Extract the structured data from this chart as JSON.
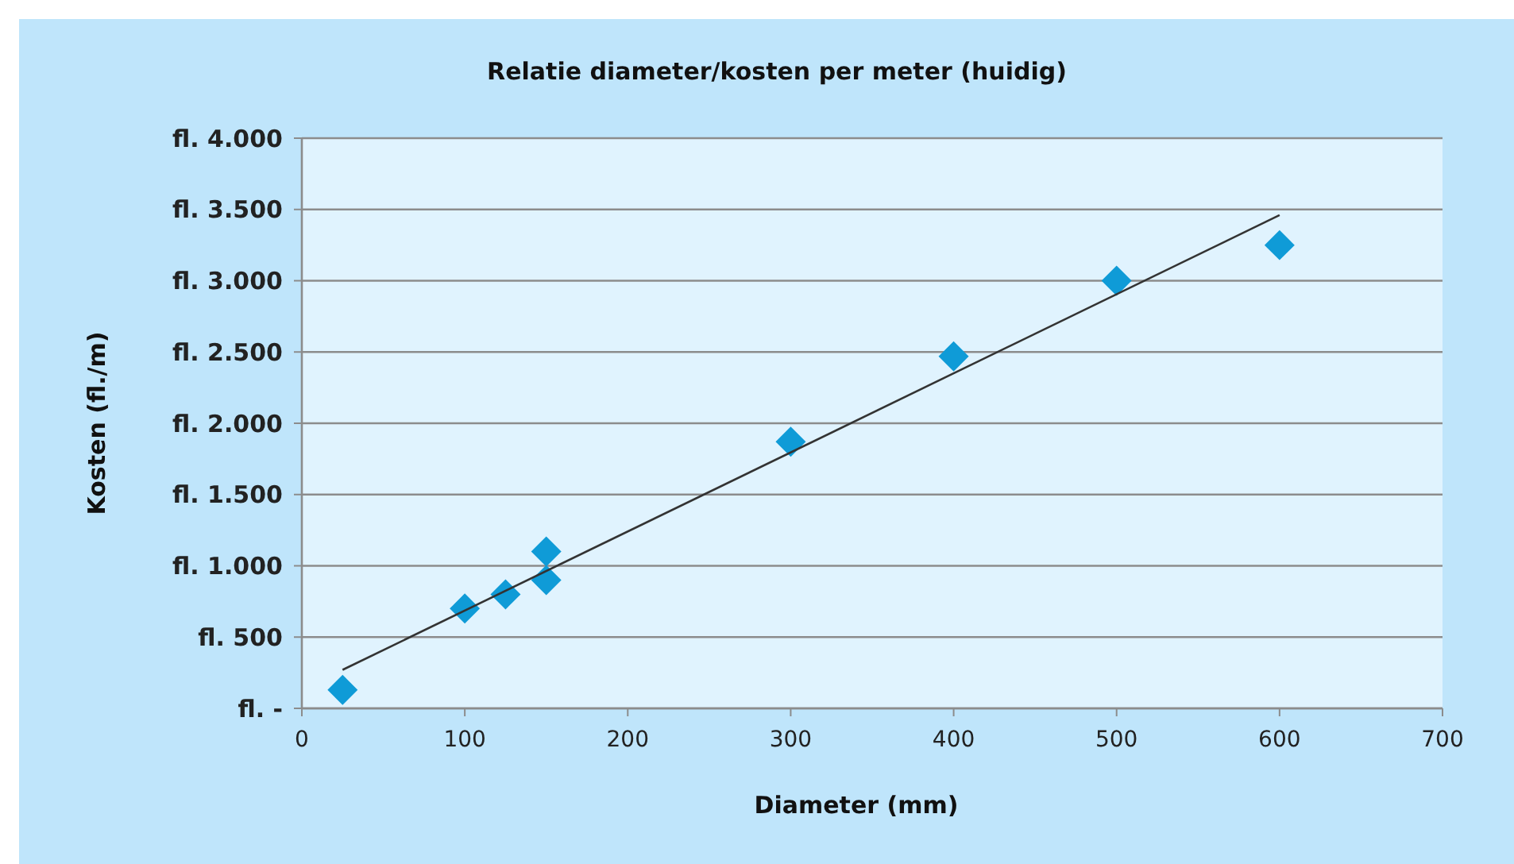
{
  "chart_data": {
    "type": "scatter",
    "title": "Relatie diameter/kosten per meter (huidig)",
    "xlabel": "Diameter (mm)",
    "ylabel": "Kosten (fl./m)",
    "xlim": [
      0,
      700
    ],
    "xticks": [
      0,
      100,
      200,
      300,
      400,
      500,
      600,
      700
    ],
    "ylim": [
      0,
      4000
    ],
    "yticks": [
      {
        "value": 0,
        "label": "fl.    -"
      },
      {
        "value": 500,
        "label": "fl. 500"
      },
      {
        "value": 1000,
        "label": "fl. 1.000"
      },
      {
        "value": 1500,
        "label": "fl. 1.500"
      },
      {
        "value": 2000,
        "label": "fl. 2.000"
      },
      {
        "value": 2500,
        "label": "fl. 2.500"
      },
      {
        "value": 3000,
        "label": "fl. 3.000"
      },
      {
        "value": 3500,
        "label": "fl. 3.500"
      },
      {
        "value": 4000,
        "label": "fl. 4.000"
      }
    ],
    "grid": "y",
    "marker": "diamond",
    "series": [
      {
        "color": "#0f9bd7",
        "x": [
          25,
          100,
          125,
          150,
          150,
          300,
          400,
          500,
          600
        ],
        "values": [
          130,
          700,
          800,
          1100,
          900,
          1870,
          2470,
          3000,
          3250
        ]
      },
      {
        "type": "line",
        "color": "#333333",
        "x": [
          25,
          600
        ],
        "values": [
          270,
          3460
        ],
        "marker": "none",
        "line_style": "solid"
      }
    ]
  }
}
